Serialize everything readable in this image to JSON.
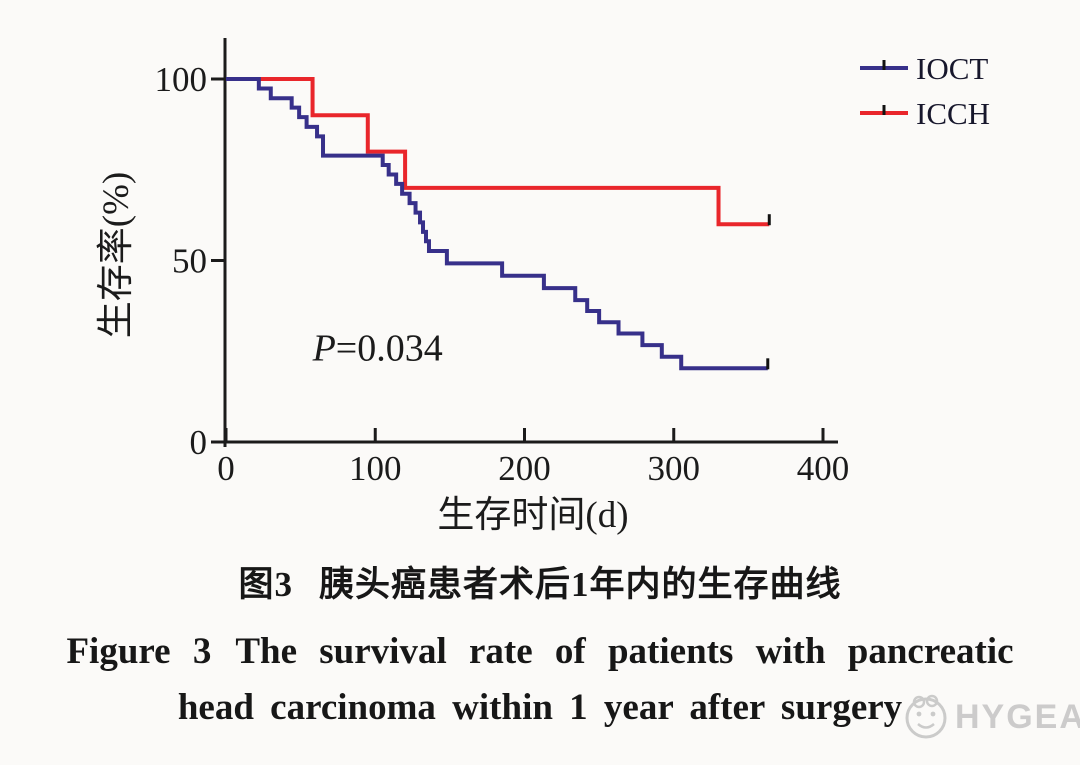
{
  "chart_data": {
    "type": "line",
    "subtype": "kaplan_meier_step",
    "title": "",
    "xlabel": "生存时间(d)",
    "ylabel": "生存率(%)",
    "xlim": [
      0,
      400
    ],
    "xticks": [
      "0",
      "100",
      "200",
      "300",
      "400"
    ],
    "xtick_values": [
      0,
      100,
      200,
      300,
      400
    ],
    "ylim": [
      0,
      100
    ],
    "yticks": [
      "0",
      "50",
      "100"
    ],
    "ytick_values": [
      0,
      50,
      100
    ],
    "grid": false,
    "legend_position": "top-right",
    "annotation": {
      "italic": "P",
      "rest": "=0.034",
      "x_day": 58,
      "y_pct": 26
    },
    "series": [
      {
        "name": "IOCT",
        "color": "#37308a",
        "start_pct": 100,
        "end_time": 363,
        "censored_at_end": true,
        "drops": [
          [
            22,
            97.4
          ],
          [
            30,
            94.7
          ],
          [
            44,
            92.1
          ],
          [
            49,
            89.5
          ],
          [
            54,
            86.8
          ],
          [
            61,
            84.2
          ],
          [
            65,
            78.9
          ],
          [
            105,
            76.3
          ],
          [
            109,
            73.7
          ],
          [
            114,
            71.1
          ],
          [
            118,
            68.4
          ],
          [
            123,
            65.8
          ],
          [
            127,
            63.2
          ],
          [
            130,
            60.5
          ],
          [
            132,
            57.9
          ],
          [
            134,
            55.3
          ],
          [
            136,
            52.6
          ],
          [
            148,
            49.2
          ],
          [
            185,
            45.8
          ],
          [
            213,
            42.4
          ],
          [
            234,
            39.1
          ],
          [
            242,
            36.1
          ],
          [
            250,
            33.0
          ],
          [
            263,
            29.9
          ],
          [
            279,
            26.7
          ],
          [
            292,
            23.5
          ],
          [
            305,
            20.3
          ]
        ]
      },
      {
        "name": "ICCH",
        "color": "#e9262b",
        "start_pct": 100,
        "end_time": 364,
        "censored_at_end": true,
        "drops": [
          [
            58,
            90
          ],
          [
            95,
            80
          ],
          [
            120,
            70
          ],
          [
            330,
            60
          ]
        ]
      }
    ]
  },
  "captions": {
    "cn_label": "图3",
    "cn_text": "胰头癌患者术后1年内的生存曲线",
    "en_label": "Figure 3",
    "en_line1": "The survival rate of patients with pancreatic",
    "en_line2": "head carcinoma within 1 year after surgery"
  },
  "watermark": {
    "text": "HYGEA"
  }
}
